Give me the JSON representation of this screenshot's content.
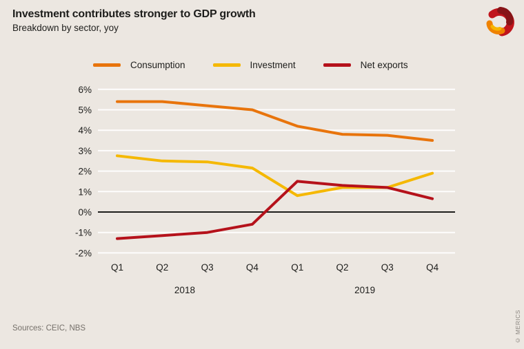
{
  "chart_data": {
    "type": "line",
    "title": "Investment contributes stronger to GDP growth",
    "subtitle": "Breakdown by sector, yoy",
    "x_labels": [
      "Q1",
      "Q2",
      "Q3",
      "Q4",
      "Q1",
      "Q2",
      "Q3",
      "Q4"
    ],
    "x_groups": [
      {
        "label": "2018",
        "from": 0,
        "to": 3
      },
      {
        "label": "2019",
        "from": 4,
        "to": 7
      }
    ],
    "ylim": [
      -2,
      6
    ],
    "ytick_step": 1,
    "ytick_labels": [
      "6%",
      "5%",
      "4%",
      "3%",
      "2%",
      "1%",
      "0%",
      "-1%",
      "-2%"
    ],
    "grid": true,
    "zero_line": true,
    "legend_position": "top",
    "series": [
      {
        "name": "Consumption",
        "color": "#e8740c",
        "values": [
          5.4,
          5.4,
          5.2,
          5.0,
          4.2,
          3.8,
          3.75,
          3.5
        ]
      },
      {
        "name": "Investment",
        "color": "#f5b800",
        "values": [
          2.75,
          2.5,
          2.45,
          2.15,
          0.8,
          1.2,
          1.2,
          1.9
        ]
      },
      {
        "name": "Net exports",
        "color": "#b5121b",
        "values": [
          -1.3,
          -1.15,
          -1.0,
          -0.6,
          1.5,
          1.3,
          1.2,
          0.65
        ]
      }
    ]
  },
  "footer": {
    "sources": "Sources: CEIC, NBS",
    "copyright": "© MERICS"
  }
}
